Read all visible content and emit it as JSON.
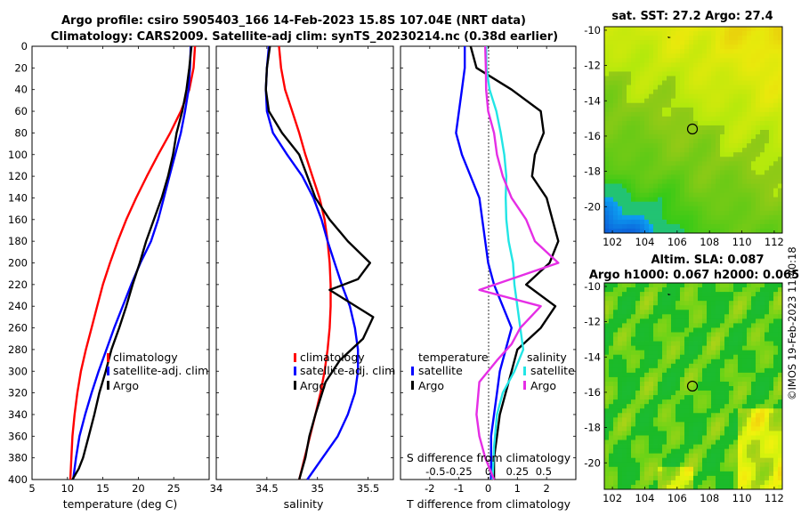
{
  "title": {
    "line1": "Argo profile: csiro 5905403_166 14-Feb-2023 15.8S 107.04E (NRT data)",
    "line2": "Climatology: CARS2009. Satellite-adj clim: synTS_20230214.nc (0.38d earlier)"
  },
  "colors": {
    "climatology": "#ff0000",
    "satellite": "#0000ff",
    "argo": "#000000",
    "temp_diff": "#22e5e5",
    "sal_diff": "#e52ee5"
  },
  "chart_data": [
    {
      "id": "temperature",
      "type": "line",
      "xlabel": "temperature (deg C)",
      "ylabel": "",
      "xlim": [
        5,
        30
      ],
      "ylim": [
        400,
        0
      ],
      "xticks": [
        5,
        10,
        15,
        20,
        25
      ],
      "yticks": [
        0,
        20,
        40,
        60,
        80,
        100,
        120,
        140,
        160,
        180,
        200,
        220,
        240,
        260,
        280,
        300,
        320,
        340,
        360,
        380,
        400
      ],
      "legend": [
        "climatology",
        "satellite-adj. clim",
        "Argo"
      ],
      "series": [
        {
          "name": "climatology",
          "x": [
            28,
            27.8,
            27.2,
            26,
            24.5,
            22.8,
            21.2,
            19.7,
            18.3,
            17.1,
            16,
            15,
            14.2,
            13.4,
            12.6,
            11.9,
            11.4,
            11,
            10.7,
            10.4
          ],
          "y": [
            0,
            20,
            40,
            60,
            80,
            100,
            120,
            140,
            160,
            180,
            200,
            220,
            240,
            260,
            280,
            300,
            320,
            340,
            360,
            400
          ]
        },
        {
          "name": "satellite-adj. clim",
          "x": [
            27.4,
            27.3,
            27.1,
            26.6,
            26,
            25.2,
            24.4,
            23.6,
            22.8,
            21.8,
            20.3,
            19,
            17.8,
            16.6,
            15.5,
            14.4,
            13.4,
            12.5,
            11.7,
            11.2,
            10.8
          ],
          "y": [
            0,
            20,
            40,
            60,
            80,
            100,
            120,
            140,
            160,
            180,
            200,
            220,
            240,
            260,
            280,
            300,
            320,
            340,
            360,
            380,
            400
          ]
        },
        {
          "name": "Argo",
          "x": [
            27.5,
            27.2,
            26.8,
            26.2,
            25.4,
            24.9,
            24.2,
            23.3,
            22.2,
            21.1,
            20.2,
            19.2,
            18.3,
            17.3,
            16.2,
            15.4,
            14.5,
            13.8,
            13,
            12.2,
            11.6,
            10.7
          ],
          "y": [
            0,
            20,
            40,
            60,
            80,
            100,
            120,
            140,
            160,
            180,
            200,
            220,
            240,
            260,
            280,
            300,
            320,
            340,
            360,
            380,
            390,
            400
          ]
        }
      ]
    },
    {
      "id": "salinity",
      "type": "line",
      "xlabel": "salinity",
      "xlim": [
        34,
        35.75
      ],
      "ylim": [
        400,
        0
      ],
      "xticks": [
        34,
        34.5,
        35,
        35.5
      ],
      "legend": [
        "climatology",
        "satellite-adj. clim",
        "Argo"
      ],
      "series": [
        {
          "name": "climatology",
          "x": [
            34.62,
            34.64,
            34.68,
            34.75,
            34.82,
            34.88,
            34.95,
            35.02,
            35.07,
            35.1,
            35.12,
            35.13,
            35.13,
            35.12,
            35.1,
            35.07,
            35.03,
            34.98,
            34.9,
            34.82
          ],
          "y": [
            0,
            20,
            40,
            60,
            80,
            100,
            120,
            140,
            160,
            180,
            200,
            220,
            240,
            260,
            280,
            300,
            320,
            340,
            370,
            400
          ]
        },
        {
          "name": "satellite-adj. clim",
          "x": [
            34.52,
            34.5,
            34.49,
            34.5,
            34.56,
            34.7,
            34.85,
            34.96,
            35.04,
            35.1,
            35.17,
            35.24,
            35.32,
            35.37,
            35.4,
            35.4,
            35.37,
            35.3,
            35.2,
            35.05,
            34.9
          ],
          "y": [
            0,
            20,
            40,
            60,
            80,
            100,
            120,
            140,
            160,
            180,
            200,
            220,
            240,
            260,
            280,
            300,
            320,
            340,
            360,
            380,
            400
          ]
        },
        {
          "name": "Argo",
          "x": [
            34.53,
            34.5,
            34.49,
            34.52,
            34.65,
            34.82,
            34.9,
            34.98,
            35.12,
            35.3,
            35.52,
            35.4,
            35.12,
            35.55,
            35.45,
            35.22,
            35.08,
            34.98,
            34.92,
            34.88,
            34.82
          ],
          "y": [
            0,
            20,
            40,
            60,
            80,
            100,
            120,
            140,
            160,
            180,
            200,
            215,
            225,
            250,
            270,
            290,
            310,
            340,
            360,
            380,
            400
          ]
        }
      ]
    },
    {
      "id": "difference",
      "type": "line",
      "xlabel": "T difference from climatology",
      "x2label": "S difference from climatology",
      "xlim": [
        -3,
        3
      ],
      "ylim": [
        400,
        0
      ],
      "xticks": [
        -2,
        -1,
        0,
        1,
        2
      ],
      "x2ticks": [
        "-0.5",
        "-0.25",
        "0",
        "0.25",
        "0.5"
      ],
      "legend_titles": [
        "temperature",
        "salinity"
      ],
      "legend_temperature": [
        "satellite",
        "Argo"
      ],
      "legend_salinity": [
        "satellite",
        "Argo"
      ],
      "series": [
        {
          "name": "T satellite",
          "x": [
            -0.8,
            -0.8,
            -0.9,
            -1,
            -1.1,
            -0.9,
            -0.6,
            -0.3,
            -0.2,
            -0.1,
            0,
            0.2,
            0.5,
            0.8,
            0.6,
            0.4,
            0.3,
            0.2,
            0.1,
            0.1,
            0.1
          ],
          "y": [
            0,
            20,
            40,
            60,
            80,
            100,
            120,
            140,
            160,
            180,
            200,
            220,
            240,
            260,
            280,
            300,
            320,
            340,
            360,
            380,
            400
          ]
        },
        {
          "name": "T Argo",
          "x": [
            -0.6,
            -0.4,
            0.8,
            1.8,
            1.9,
            1.6,
            1.5,
            2,
            2.2,
            2.4,
            2.1,
            1.3,
            2.3,
            1.8,
            1,
            0.8,
            0.6,
            0.4,
            0.3,
            0.2,
            0.2
          ],
          "y": [
            0,
            20,
            40,
            60,
            80,
            100,
            120,
            140,
            160,
            180,
            200,
            220,
            240,
            260,
            280,
            300,
            320,
            340,
            360,
            380,
            400
          ]
        },
        {
          "name": "S satellite",
          "x": [
            -0.07,
            -0.06,
            0.05,
            0.28,
            0.43,
            0.55,
            0.62,
            0.6,
            0.62,
            0.7,
            0.85,
            0.9,
            1,
            1.1,
            1.2,
            0.9,
            0.5,
            0.3,
            0.2,
            0.15
          ],
          "y": [
            0,
            20,
            40,
            60,
            80,
            100,
            120,
            140,
            160,
            180,
            200,
            220,
            240,
            260,
            280,
            300,
            320,
            340,
            370,
            400
          ]
        },
        {
          "name": "S Argo",
          "x": [
            -0.1,
            -0.08,
            -0.07,
            0,
            0.2,
            0.3,
            0.5,
            0.8,
            1.3,
            1.6,
            2.4,
            -0.3,
            1.8,
            1.1,
            0.8,
            0.3,
            -0.3,
            -0.4,
            -0.3,
            -0.1,
            0.2
          ],
          "y": [
            0,
            20,
            40,
            60,
            80,
            100,
            120,
            140,
            160,
            180,
            200,
            225,
            240,
            260,
            275,
            290,
            310,
            340,
            360,
            380,
            400
          ]
        }
      ]
    },
    {
      "id": "sst_map",
      "type": "heatmap",
      "title": "sat. SST: 27.2 Argo: 27.4",
      "xticks": [
        102,
        104,
        106,
        108,
        110,
        112
      ],
      "yticks": [
        -10,
        -12,
        -14,
        -16,
        -18,
        -20
      ],
      "xlim": [
        101.5,
        112.5
      ],
      "ylim": [
        -21.5,
        -9.8
      ],
      "profile_location": {
        "lon": 107.04,
        "lat": -15.8
      }
    },
    {
      "id": "sla_map",
      "type": "heatmap",
      "title": "Altim. SLA: 0.087",
      "subtitle": "Argo h1000: 0.067 h2000: 0.065",
      "xticks": [
        102,
        104,
        106,
        108,
        110,
        112
      ],
      "yticks": [
        -10,
        -12,
        -14,
        -16,
        -18,
        -20
      ],
      "xlim": [
        101.5,
        112.5
      ],
      "ylim": [
        -21.5,
        -9.8
      ],
      "profile_location": {
        "lon": 107.04,
        "lat": -15.8
      }
    }
  ],
  "copyright": "©IMOS 19-Feb-2023 11:40:18"
}
